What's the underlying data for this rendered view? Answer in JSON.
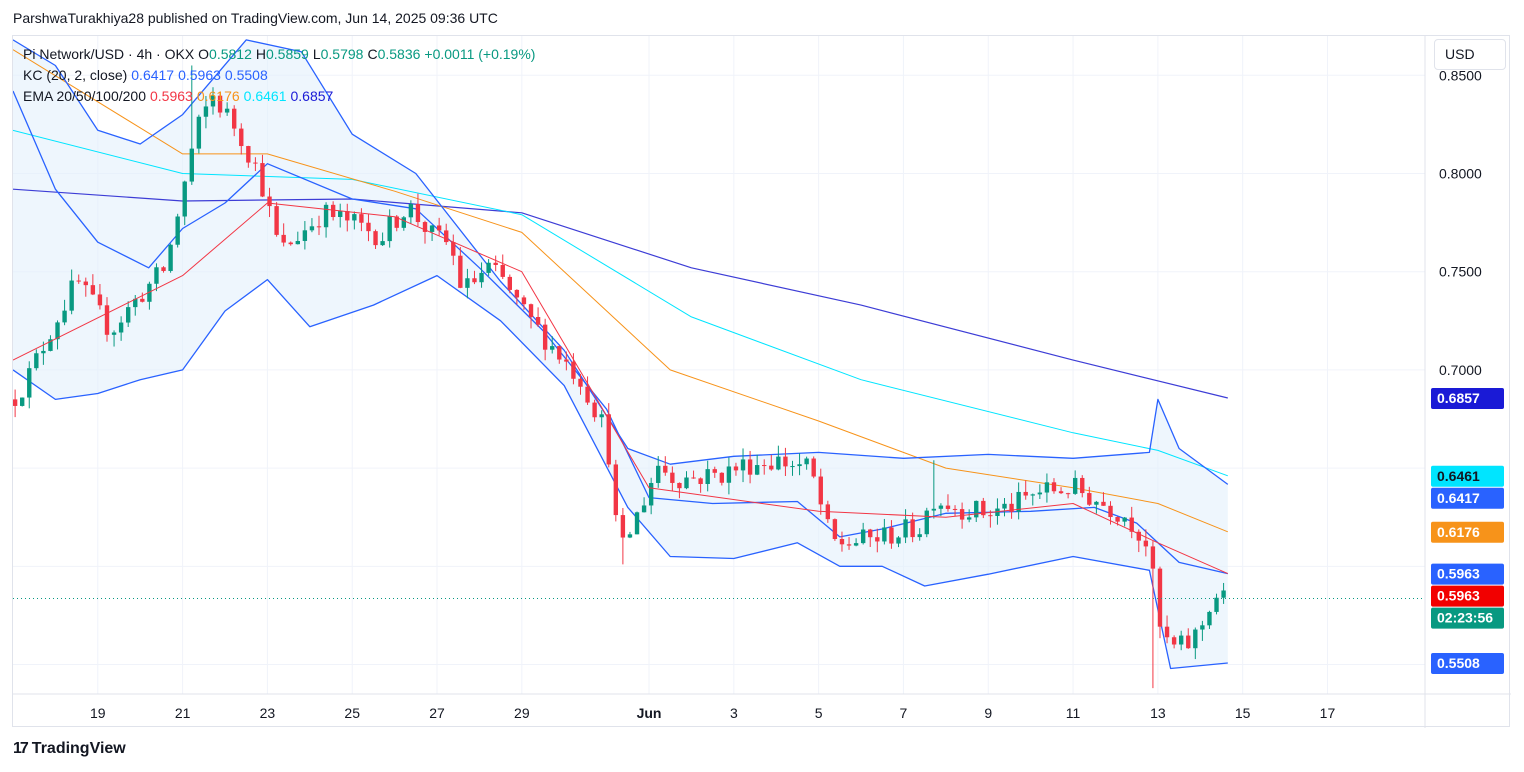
{
  "header": {
    "published_by": "ParshwaTurakhiya28 published on TradingView.com, Jun 14, 2025 09:36 UTC"
  },
  "legend": {
    "symbol": "Pi Network/USD · 4h · OKX",
    "o_label": "O",
    "o_value": "0.5812",
    "h_label": "H",
    "h_value": "0.5859",
    "l_label": "L",
    "l_value": "0.5798",
    "c_label": "C",
    "c_value": "0.5836",
    "change": "+0.0011 (+0.19%)",
    "kc_label": "KC (20, 2, close)",
    "kc_upper": "0.6417",
    "kc_middle": "0.5963",
    "kc_lower": "0.5508",
    "ema_label": "EMA 20/50/100/200",
    "ema20": "0.5963",
    "ema50": "0.6176",
    "ema100": "0.6461",
    "ema200": "0.6857"
  },
  "currency": "USD",
  "brand": "TradingView",
  "colors": {
    "up": "#089981",
    "down": "#f23645",
    "kc_band": "#2962ff",
    "kc_fill": "#e3f0fb",
    "ema20": "#f23645",
    "ema50": "#f7931a",
    "ema100": "#00e5ff",
    "ema200": "#3d3dd6",
    "countdown": "#089981"
  },
  "price_scale": {
    "ticks": [
      "0.8500",
      "0.8000",
      "0.7500",
      "0.7000"
    ],
    "badges": [
      {
        "text": "0.6857",
        "value": 0.6857,
        "color": "#1a1ad6",
        "name": "ema200-badge"
      },
      {
        "text": "0.6461",
        "value": 0.6461,
        "color": "#00e5ff",
        "text_color": "#131722",
        "name": "ema100-badge"
      },
      {
        "text": "0.6417",
        "value": 0.6417,
        "color": "#2962ff",
        "name": "kc-upper-badge"
      },
      {
        "text": "0.6176",
        "value": 0.6176,
        "color": "#f7931a",
        "name": "ema50-badge"
      },
      {
        "text": "0.5963",
        "value": 0.5963,
        "color": "#2962ff",
        "name": "kc-middle-badge"
      },
      {
        "text": "0.5963",
        "value": 0.5963,
        "color": "#f20000",
        "name": "ema20-badge"
      },
      {
        "text": "02:23:56",
        "value": 0.5836,
        "color": "#089981",
        "name": "countdown-badge"
      },
      {
        "text": "0.5508",
        "value": 0.5508,
        "color": "#2962ff",
        "name": "kc-lower-badge"
      }
    ]
  },
  "time_scale": {
    "ticks": [
      {
        "label": "19",
        "day": 2,
        "bold": false
      },
      {
        "label": "21",
        "day": 4,
        "bold": false
      },
      {
        "label": "23",
        "day": 6,
        "bold": false
      },
      {
        "label": "25",
        "day": 8,
        "bold": false
      },
      {
        "label": "27",
        "day": 10,
        "bold": false
      },
      {
        "label": "29",
        "day": 12,
        "bold": false
      },
      {
        "label": "Jun",
        "day": 15,
        "bold": true
      },
      {
        "label": "3",
        "day": 17,
        "bold": false
      },
      {
        "label": "5",
        "day": 19,
        "bold": false
      },
      {
        "label": "7",
        "day": 21,
        "bold": false
      },
      {
        "label": "9",
        "day": 23,
        "bold": false
      },
      {
        "label": "11",
        "day": 25,
        "bold": false
      },
      {
        "label": "13",
        "day": 27,
        "bold": false
      },
      {
        "label": "15",
        "day": 29,
        "bold": false
      },
      {
        "label": "17",
        "day": 31,
        "bold": false
      }
    ]
  },
  "chart_data": {
    "type": "candlestick",
    "title": "Pi Network/USD · 4h · OKX",
    "x_unit": "days since May 17, 2025",
    "ylim": [
      0.535,
      0.87
    ],
    "x_range": [
      0.0,
      33.3
    ],
    "grid": true,
    "close_anchors": [
      [
        0.0,
        0.685
      ],
      [
        0.3,
        0.694
      ],
      [
        1.0,
        0.725
      ],
      [
        1.5,
        0.745
      ],
      [
        2.3,
        0.72
      ],
      [
        3.0,
        0.738
      ],
      [
        3.6,
        0.752
      ],
      [
        4.0,
        0.79
      ],
      [
        4.3,
        0.82
      ],
      [
        4.7,
        0.84
      ],
      [
        5.3,
        0.822
      ],
      [
        5.8,
        0.8
      ],
      [
        6.3,
        0.76
      ],
      [
        6.8,
        0.77
      ],
      [
        7.3,
        0.78
      ],
      [
        8.0,
        0.775
      ],
      [
        8.7,
        0.768
      ],
      [
        9.3,
        0.784
      ],
      [
        9.9,
        0.768
      ],
      [
        10.3,
        0.764
      ],
      [
        10.6,
        0.74
      ],
      [
        11.2,
        0.752
      ],
      [
        11.6,
        0.744
      ],
      [
        12.0,
        0.73
      ],
      [
        12.6,
        0.715
      ],
      [
        13.4,
        0.695
      ],
      [
        14.0,
        0.668
      ],
      [
        14.3,
        0.605
      ],
      [
        14.9,
        0.635
      ],
      [
        15.2,
        0.652
      ],
      [
        15.6,
        0.645
      ],
      [
        16.0,
        0.645
      ],
      [
        16.7,
        0.647
      ],
      [
        17.3,
        0.652
      ],
      [
        18.0,
        0.654
      ],
      [
        18.8,
        0.65
      ],
      [
        19.3,
        0.612
      ],
      [
        19.7,
        0.612
      ],
      [
        20.5,
        0.615
      ],
      [
        21.4,
        0.62
      ],
      [
        21.7,
        0.635
      ],
      [
        22.3,
        0.63
      ],
      [
        23.0,
        0.627
      ],
      [
        23.6,
        0.631
      ],
      [
        24.2,
        0.638
      ],
      [
        25.0,
        0.64
      ],
      [
        25.7,
        0.632
      ],
      [
        26.3,
        0.625
      ],
      [
        26.8,
        0.61
      ],
      [
        27.0,
        0.57
      ],
      [
        27.3,
        0.558
      ],
      [
        27.7,
        0.56
      ],
      [
        28.0,
        0.568
      ],
      [
        28.3,
        0.585
      ],
      [
        28.65,
        0.5836
      ]
    ],
    "notable_wicks": [
      {
        "day": 4.2,
        "high": 0.855
      },
      {
        "day": 14.3,
        "low": 0.601
      },
      {
        "day": 26.9,
        "low": 0.538
      },
      {
        "day": 21.8,
        "high": 0.654
      }
    ],
    "series": [
      {
        "name": "EMA 20",
        "color": "#f23645",
        "last": 0.5963,
        "points": [
          [
            0.0,
            0.705
          ],
          [
            4.0,
            0.748
          ],
          [
            6.0,
            0.785
          ],
          [
            9.0,
            0.778
          ],
          [
            12.0,
            0.75
          ],
          [
            15.0,
            0.64
          ],
          [
            19.0,
            0.628
          ],
          [
            22.0,
            0.625
          ],
          [
            25.0,
            0.632
          ],
          [
            27.0,
            0.612
          ],
          [
            28.65,
            0.5963
          ]
        ]
      },
      {
        "name": "EMA 50",
        "color": "#f7931a",
        "last": 0.6176,
        "points": [
          [
            0.0,
            0.863
          ],
          [
            4.0,
            0.81
          ],
          [
            6.0,
            0.81
          ],
          [
            9.0,
            0.791
          ],
          [
            12.0,
            0.77
          ],
          [
            13.5,
            0.74
          ],
          [
            15.5,
            0.7
          ],
          [
            19.0,
            0.674
          ],
          [
            22.0,
            0.65
          ],
          [
            25.0,
            0.64
          ],
          [
            27.0,
            0.632
          ],
          [
            28.65,
            0.6176
          ]
        ]
      },
      {
        "name": "EMA 100",
        "color": "#00e5ff",
        "last": 0.6461,
        "points": [
          [
            0.0,
            0.822
          ],
          [
            4.0,
            0.8
          ],
          [
            8.0,
            0.797
          ],
          [
            12.0,
            0.779
          ],
          [
            16.0,
            0.727
          ],
          [
            20.0,
            0.695
          ],
          [
            25.0,
            0.668
          ],
          [
            27.0,
            0.659
          ],
          [
            28.65,
            0.6461
          ]
        ]
      },
      {
        "name": "EMA 200",
        "color": "#3d3dd6",
        "last": 0.6857,
        "points": [
          [
            0.0,
            0.792
          ],
          [
            4.0,
            0.786
          ],
          [
            8.0,
            0.787
          ],
          [
            12.0,
            0.78
          ],
          [
            16.0,
            0.752
          ],
          [
            20.0,
            0.733
          ],
          [
            25.0,
            0.705
          ],
          [
            28.65,
            0.6857
          ]
        ]
      },
      {
        "name": "KC upper",
        "color": "#2962ff",
        "last": 0.6417,
        "points": [
          [
            0.0,
            0.868
          ],
          [
            1.0,
            0.855
          ],
          [
            2.0,
            0.822
          ],
          [
            3.0,
            0.815
          ],
          [
            4.0,
            0.83
          ],
          [
            5.5,
            0.868
          ],
          [
            6.8,
            0.862
          ],
          [
            8.0,
            0.82
          ],
          [
            9.5,
            0.8
          ],
          [
            11.5,
            0.745
          ],
          [
            13.0,
            0.71
          ],
          [
            14.5,
            0.66
          ],
          [
            15.5,
            0.652
          ],
          [
            17.0,
            0.656
          ],
          [
            19.0,
            0.658
          ],
          [
            21.0,
            0.655
          ],
          [
            23.0,
            0.657
          ],
          [
            25.0,
            0.655
          ],
          [
            26.8,
            0.658
          ],
          [
            27.0,
            0.685
          ],
          [
            27.5,
            0.66
          ],
          [
            28.65,
            0.6417
          ]
        ]
      },
      {
        "name": "KC middle",
        "color": "#2962ff",
        "last": 0.5963,
        "points": [
          [
            0.0,
            0.842
          ],
          [
            1.0,
            0.792
          ],
          [
            2.0,
            0.765
          ],
          [
            3.2,
            0.752
          ],
          [
            4.0,
            0.772
          ],
          [
            5.0,
            0.785
          ],
          [
            6.0,
            0.805
          ],
          [
            8.0,
            0.787
          ],
          [
            9.5,
            0.782
          ],
          [
            11.0,
            0.752
          ],
          [
            12.5,
            0.72
          ],
          [
            14.0,
            0.68
          ],
          [
            15.0,
            0.635
          ],
          [
            16.5,
            0.632
          ],
          [
            18.5,
            0.633
          ],
          [
            19.5,
            0.615
          ],
          [
            20.5,
            0.619
          ],
          [
            22.0,
            0.627
          ],
          [
            24.0,
            0.628
          ],
          [
            25.5,
            0.63
          ],
          [
            26.5,
            0.622
          ],
          [
            27.5,
            0.602
          ],
          [
            28.65,
            0.5963
          ]
        ]
      },
      {
        "name": "KC lower",
        "color": "#2962ff",
        "last": 0.5508,
        "points": [
          [
            0.0,
            0.7
          ],
          [
            1.0,
            0.685
          ],
          [
            2.0,
            0.688
          ],
          [
            3.0,
            0.695
          ],
          [
            4.0,
            0.7
          ],
          [
            5.0,
            0.73
          ],
          [
            6.0,
            0.746
          ],
          [
            7.0,
            0.722
          ],
          [
            8.5,
            0.733
          ],
          [
            10.0,
            0.748
          ],
          [
            11.5,
            0.725
          ],
          [
            13.0,
            0.692
          ],
          [
            14.5,
            0.63
          ],
          [
            15.5,
            0.605
          ],
          [
            17.0,
            0.604
          ],
          [
            18.5,
            0.612
          ],
          [
            19.5,
            0.6
          ],
          [
            20.5,
            0.6
          ],
          [
            21.5,
            0.59
          ],
          [
            23.0,
            0.596
          ],
          [
            25.0,
            0.605
          ],
          [
            26.8,
            0.598
          ],
          [
            27.3,
            0.548
          ],
          [
            28.65,
            0.5508
          ]
        ]
      }
    ]
  }
}
